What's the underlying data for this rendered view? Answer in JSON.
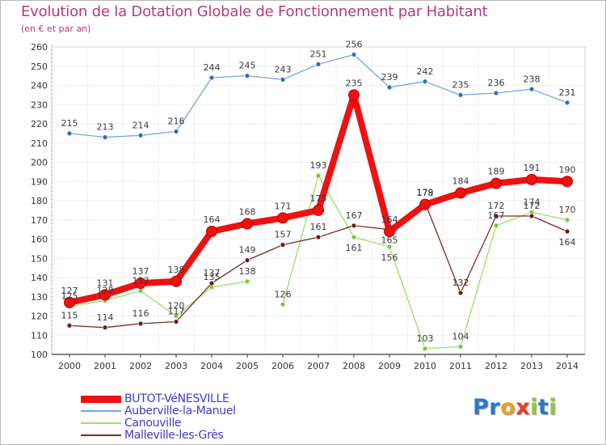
{
  "title": "Evolution de la Dotation Globale de Fonctionnement par Habitant",
  "subtitle": "(en € et par an)",
  "logo": {
    "text": "Proxiti",
    "letters": [
      "P",
      "r",
      "o",
      "x",
      "i",
      "t",
      "i"
    ],
    "colors": [
      "#2a78c8",
      "#2a78c8",
      "#f0a020",
      "#e8401c",
      "#8cc63f",
      "#2a78c8",
      "#8cc63f"
    ]
  },
  "chart_data": {
    "type": "line",
    "x": [
      "2000",
      "2001",
      "2002",
      "2003",
      "2004",
      "2005",
      "2006",
      "2007",
      "2008",
      "2009",
      "2010",
      "2011",
      "2012",
      "2013",
      "2014"
    ],
    "ylim": [
      100,
      260
    ],
    "yticks": [
      100,
      110,
      120,
      130,
      140,
      150,
      160,
      170,
      180,
      190,
      200,
      210,
      220,
      230,
      240,
      250,
      260
    ],
    "xlabel": "",
    "ylabel": "",
    "grid": true,
    "legend_position": "bottom-left",
    "series": [
      {
        "name": "Auberville-la-Manuel",
        "color": "#6fa8dc",
        "marker": "#2f6fb3",
        "width": 1.3,
        "radius": 3,
        "values": [
          215,
          213,
          214,
          216,
          244,
          245,
          243,
          251,
          256,
          239,
          242,
          235,
          236,
          238,
          231
        ],
        "labels": [
          "215",
          "213",
          "214",
          "216",
          "244",
          "245",
          "243",
          "251",
          "256",
          "239",
          "242",
          "235",
          "236",
          "238",
          "231"
        ],
        "label_pos": [
          -1,
          -1,
          -1,
          -1,
          -1,
          -1,
          -1,
          -1,
          -1,
          -1,
          -1,
          -1,
          -1,
          -1,
          -1
        ]
      },
      {
        "name": "Canouville",
        "color": "#99e066",
        "marker": "#7cc63a",
        "width": 1.3,
        "radius": 3,
        "values": [
          125,
          128,
          133,
          120,
          135,
          138,
          126,
          193,
          161,
          156,
          103,
          104,
          167,
          174,
          170
        ],
        "labels": [
          "125",
          "128",
          "133",
          "120",
          "135",
          "138",
          "126",
          "193",
          "161",
          "156",
          "103",
          "104",
          "167",
          "174",
          "170"
        ],
        "label_pos": [
          -1,
          -1,
          -1,
          -1,
          -1,
          -1,
          -1,
          -1,
          1,
          1,
          -1,
          -1,
          -1,
          -1,
          -1
        ],
        "gaps": [
          6
        ]
      },
      {
        "name": "Malleville-les-Grès",
        "color": "#7b2a2a",
        "marker": "#6b1c1c",
        "width": 1.3,
        "radius": 3,
        "values": [
          115,
          114,
          116,
          117,
          137,
          149,
          157,
          161,
          167,
          165,
          179,
          132,
          172,
          172,
          164
        ],
        "labels": [
          "115",
          "114",
          "116",
          "117",
          "137",
          "149",
          "157",
          "161",
          "167",
          "165",
          "179",
          "132",
          "172",
          "172",
          "164"
        ],
        "label_pos": [
          -1,
          -1,
          -1,
          -1,
          -1,
          -1,
          -1,
          -1,
          -1,
          1,
          -1,
          -1,
          -1,
          -1,
          1
        ]
      },
      {
        "name": "BUTOT-VéNESVILLE",
        "color": "#ee1111",
        "marker": "#ee1111",
        "width": 8,
        "radius": 6.5,
        "values": [
          127,
          131,
          137,
          138,
          164,
          168,
          171,
          175,
          235,
          164,
          178,
          184,
          189,
          191,
          190
        ],
        "labels": [
          "127",
          "131",
          "137",
          "138",
          "164",
          "168",
          "171",
          "175",
          "235",
          "164",
          "178",
          "184",
          "189",
          "191",
          "190"
        ],
        "label_pos": [
          -1,
          -1,
          -1,
          -1,
          -1,
          -1,
          -1,
          -1,
          -1,
          -1,
          -1,
          -1,
          -1,
          -1,
          -1
        ]
      }
    ],
    "legend_order": [
      "BUTOT-VéNESVILLE",
      "Auberville-la-Manuel",
      "Canouville",
      "Malleville-les-Grès"
    ]
  }
}
